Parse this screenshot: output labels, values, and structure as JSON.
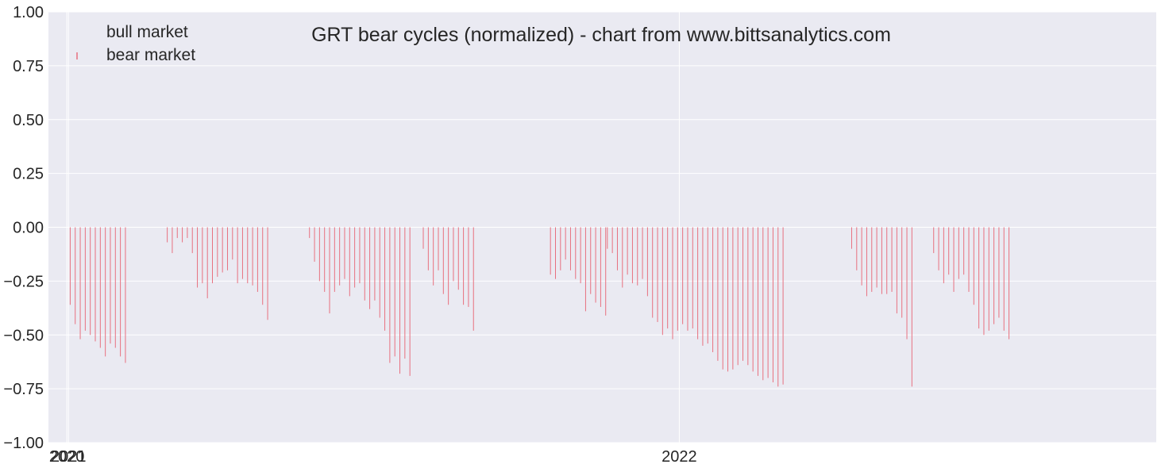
{
  "chart_data": {
    "type": "bar",
    "title": "GRT bear cycles (normalized)  - chart from www.bittsanalytics.com",
    "xlabel": "",
    "ylabel": "",
    "ylim": [
      -1.0,
      1.0
    ],
    "yticks": [
      "1.00",
      "0.75",
      "0.50",
      "0.25",
      "0.00",
      "−0.25",
      "−0.50",
      "−0.75",
      "−1.00"
    ],
    "ytick_values": [
      1.0,
      0.75,
      0.5,
      0.25,
      0.0,
      -0.25,
      -0.5,
      -0.75,
      -1.0
    ],
    "xlim": [
      "2020-12-20",
      "2022-10-13"
    ],
    "xticks": [
      {
        "label": "2020",
        "date": "2020-12-31"
      },
      {
        "label": "2021",
        "date": "2021-01-01"
      },
      {
        "label": "2022",
        "date": "2022-01-01"
      }
    ],
    "grid": true,
    "legend_position": "top-left",
    "colors": {
      "bear": "#e8707f",
      "bull": "#4c72b0",
      "background": "#eaeaf2",
      "grid": "#ffffff"
    },
    "series": [
      {
        "name": "bull market",
        "points": []
      },
      {
        "name": "bear market",
        "points": [
          [
            "2021-01-02",
            -0.36
          ],
          [
            "2021-01-05",
            -0.45
          ],
          [
            "2021-01-08",
            -0.52
          ],
          [
            "2021-01-11",
            -0.48
          ],
          [
            "2021-01-14",
            -0.5
          ],
          [
            "2021-01-17",
            -0.53
          ],
          [
            "2021-01-20",
            -0.56
          ],
          [
            "2021-01-23",
            -0.6
          ],
          [
            "2021-01-26",
            -0.54
          ],
          [
            "2021-01-29",
            -0.56
          ],
          [
            "2021-02-01",
            -0.6
          ],
          [
            "2021-02-04",
            -0.63
          ],
          [
            "2021-03-01",
            -0.07
          ],
          [
            "2021-03-04",
            -0.12
          ],
          [
            "2021-03-07",
            -0.05
          ],
          [
            "2021-03-10",
            -0.07
          ],
          [
            "2021-03-13",
            -0.05
          ],
          [
            "2021-03-16",
            -0.12
          ],
          [
            "2021-03-19",
            -0.28
          ],
          [
            "2021-03-22",
            -0.26
          ],
          [
            "2021-03-25",
            -0.33
          ],
          [
            "2021-03-28",
            -0.26
          ],
          [
            "2021-03-31",
            -0.23
          ],
          [
            "2021-04-03",
            -0.21
          ],
          [
            "2021-04-06",
            -0.2
          ],
          [
            "2021-04-09",
            -0.15
          ],
          [
            "2021-04-12",
            -0.26
          ],
          [
            "2021-04-15",
            -0.24
          ],
          [
            "2021-04-18",
            -0.26
          ],
          [
            "2021-04-21",
            -0.27
          ],
          [
            "2021-04-24",
            -0.3
          ],
          [
            "2021-04-27",
            -0.36
          ],
          [
            "2021-04-30",
            -0.43
          ],
          [
            "2021-05-25",
            -0.05
          ],
          [
            "2021-05-28",
            -0.16
          ],
          [
            "2021-05-31",
            -0.25
          ],
          [
            "2021-06-03",
            -0.3
          ],
          [
            "2021-06-06",
            -0.4
          ],
          [
            "2021-06-09",
            -0.3
          ],
          [
            "2021-06-12",
            -0.27
          ],
          [
            "2021-06-15",
            -0.24
          ],
          [
            "2021-06-18",
            -0.32
          ],
          [
            "2021-06-21",
            -0.28
          ],
          [
            "2021-06-24",
            -0.26
          ],
          [
            "2021-06-27",
            -0.34
          ],
          [
            "2021-06-30",
            -0.38
          ],
          [
            "2021-07-03",
            -0.34
          ],
          [
            "2021-07-06",
            -0.42
          ],
          [
            "2021-07-09",
            -0.48
          ],
          [
            "2021-07-12",
            -0.63
          ],
          [
            "2021-07-15",
            -0.6
          ],
          [
            "2021-07-18",
            -0.68
          ],
          [
            "2021-07-21",
            -0.61
          ],
          [
            "2021-07-24",
            -0.69
          ],
          [
            "2021-08-01",
            -0.1
          ],
          [
            "2021-08-04",
            -0.2
          ],
          [
            "2021-08-07",
            -0.27
          ],
          [
            "2021-08-10",
            -0.2
          ],
          [
            "2021-08-13",
            -0.31
          ],
          [
            "2021-08-16",
            -0.36
          ],
          [
            "2021-08-19",
            -0.25
          ],
          [
            "2021-08-22",
            -0.29
          ],
          [
            "2021-08-25",
            -0.36
          ],
          [
            "2021-08-28",
            -0.37
          ],
          [
            "2021-08-31",
            -0.48
          ],
          [
            "2021-10-16",
            -0.22
          ],
          [
            "2021-10-19",
            -0.24
          ],
          [
            "2021-10-22",
            -0.2
          ],
          [
            "2021-10-25",
            -0.15
          ],
          [
            "2021-10-28",
            -0.2
          ],
          [
            "2021-10-31",
            -0.24
          ],
          [
            "2021-11-03",
            -0.26
          ],
          [
            "2021-11-06",
            -0.39
          ],
          [
            "2021-11-09",
            -0.31
          ],
          [
            "2021-11-12",
            -0.35
          ],
          [
            "2021-11-15",
            -0.37
          ],
          [
            "2021-11-18",
            -0.41
          ],
          [
            "2021-11-19",
            -0.1
          ],
          [
            "2021-11-22",
            -0.12
          ],
          [
            "2021-11-25",
            -0.2
          ],
          [
            "2021-11-28",
            -0.28
          ],
          [
            "2021-12-01",
            -0.22
          ],
          [
            "2021-12-04",
            -0.26
          ],
          [
            "2021-12-07",
            -0.27
          ],
          [
            "2021-12-10",
            -0.24
          ],
          [
            "2021-12-13",
            -0.32
          ],
          [
            "2021-12-16",
            -0.42
          ],
          [
            "2021-12-19",
            -0.44
          ],
          [
            "2021-12-22",
            -0.5
          ],
          [
            "2021-12-25",
            -0.47
          ],
          [
            "2021-12-28",
            -0.52
          ],
          [
            "2021-12-31",
            -0.48
          ],
          [
            "2022-01-03",
            -0.45
          ],
          [
            "2022-01-06",
            -0.48
          ],
          [
            "2022-01-09",
            -0.47
          ],
          [
            "2022-01-12",
            -0.52
          ],
          [
            "2022-01-15",
            -0.55
          ],
          [
            "2022-01-18",
            -0.54
          ],
          [
            "2022-01-21",
            -0.58
          ],
          [
            "2022-01-24",
            -0.62
          ],
          [
            "2022-01-27",
            -0.66
          ],
          [
            "2022-01-30",
            -0.67
          ],
          [
            "2022-02-02",
            -0.66
          ],
          [
            "2022-02-05",
            -0.64
          ],
          [
            "2022-02-08",
            -0.62
          ],
          [
            "2022-02-11",
            -0.64
          ],
          [
            "2022-02-14",
            -0.67
          ],
          [
            "2022-02-17",
            -0.69
          ],
          [
            "2022-02-20",
            -0.71
          ],
          [
            "2022-02-23",
            -0.7
          ],
          [
            "2022-02-26",
            -0.72
          ],
          [
            "2022-03-01",
            -0.74
          ],
          [
            "2022-03-04",
            -0.73
          ],
          [
            "2022-04-14",
            -0.1
          ],
          [
            "2022-04-17",
            -0.2
          ],
          [
            "2022-04-20",
            -0.27
          ],
          [
            "2022-04-23",
            -0.32
          ],
          [
            "2022-04-26",
            -0.3
          ],
          [
            "2022-04-29",
            -0.28
          ],
          [
            "2022-05-02",
            -0.31
          ],
          [
            "2022-05-05",
            -0.31
          ],
          [
            "2022-05-08",
            -0.3
          ],
          [
            "2022-05-11",
            -0.4
          ],
          [
            "2022-05-14",
            -0.42
          ],
          [
            "2022-05-17",
            -0.52
          ],
          [
            "2022-05-20",
            -0.74
          ],
          [
            "2022-06-02",
            -0.12
          ],
          [
            "2022-06-05",
            -0.2
          ],
          [
            "2022-06-08",
            -0.26
          ],
          [
            "2022-06-11",
            -0.22
          ],
          [
            "2022-06-14",
            -0.3
          ],
          [
            "2022-06-17",
            -0.24
          ],
          [
            "2022-06-20",
            -0.22
          ],
          [
            "2022-06-23",
            -0.3
          ],
          [
            "2022-06-26",
            -0.36
          ],
          [
            "2022-06-29",
            -0.47
          ],
          [
            "2022-07-02",
            -0.5
          ],
          [
            "2022-07-05",
            -0.48
          ],
          [
            "2022-07-08",
            -0.45
          ],
          [
            "2022-07-11",
            -0.42
          ],
          [
            "2022-07-14",
            -0.48
          ],
          [
            "2022-07-17",
            -0.52
          ]
        ]
      }
    ]
  }
}
